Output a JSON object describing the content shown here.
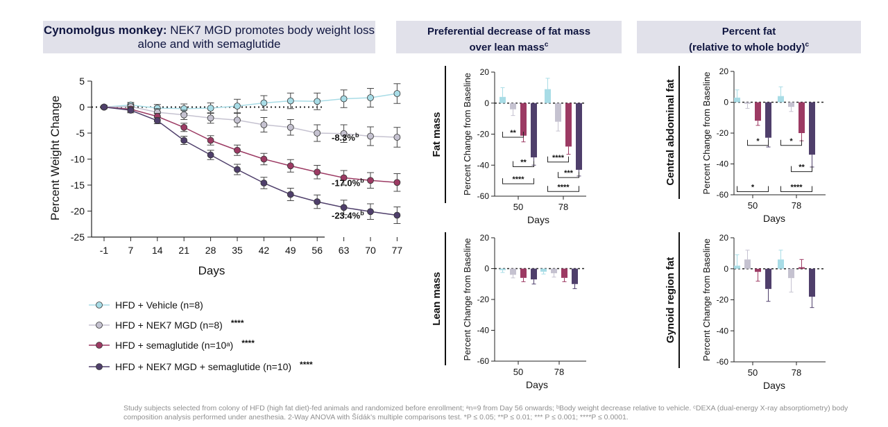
{
  "titles": {
    "main_bold": "Cynomolgus monkey:",
    "main_rest": " NEK7 MGD promotes body weight loss alone and with semaglutide",
    "mid_line1": "Preferential decrease of fat mass",
    "mid_line2": "over lean mass",
    "mid_sup": "c",
    "right_line1": "Percent fat",
    "right_line2": "(relative to whole body)",
    "right_sup": "c"
  },
  "colors": {
    "vehicle": "#a8dce6",
    "nek7": "#c5c2d0",
    "sema": "#9c3a63",
    "combo": "#4f3f6b"
  },
  "chart_data": [
    {
      "id": "weight",
      "type": "line",
      "ylabel": "Percent Weight Change",
      "xlabel": "Days",
      "x": [
        -1,
        7,
        14,
        21,
        28,
        35,
        42,
        49,
        56,
        63,
        70,
        77
      ],
      "ylim": [
        -25,
        5
      ],
      "yticks": [
        5,
        0,
        -5,
        -10,
        -15,
        -20,
        -25
      ],
      "series": [
        {
          "key": "vehicle",
          "name": "HFD + Vehicle (n=8)",
          "sig": "",
          "color": "#a8dce6",
          "values": [
            0,
            0.4,
            -0.2,
            -0.3,
            -0.2,
            0.2,
            0.8,
            1.2,
            1.1,
            1.6,
            1.8,
            2.6
          ],
          "err": [
            0.3,
            0.5,
            0.7,
            0.9,
            1.0,
            1.3,
            1.4,
            1.5,
            1.6,
            1.7,
            1.8,
            1.9
          ]
        },
        {
          "key": "nek7",
          "name": "HFD + NEK7 MGD (n=8)",
          "sig": "****",
          "color": "#c5c2d0",
          "values": [
            0,
            0.1,
            -1.0,
            -1.5,
            -2.1,
            -2.5,
            -3.4,
            -3.9,
            -5.0,
            -5.1,
            -5.6,
            -5.8
          ],
          "err": [
            0.3,
            0.5,
            0.7,
            0.9,
            1.0,
            1.3,
            1.4,
            1.5,
            1.6,
            1.7,
            1.8,
            1.9
          ]
        },
        {
          "key": "sema",
          "name": "HFD + semaglutide (n=10ᵃ)",
          "sig": "****",
          "color": "#9c3a63",
          "values": [
            0,
            -0.4,
            -1.8,
            -3.9,
            -6.4,
            -8.3,
            -10.0,
            -11.3,
            -12.5,
            -13.6,
            -14.1,
            -14.5
          ],
          "err": [
            0.3,
            0.5,
            0.6,
            0.8,
            0.9,
            1.0,
            1.1,
            1.2,
            1.3,
            1.4,
            1.5,
            1.7
          ]
        },
        {
          "key": "combo",
          "name": "HFD + NEK7 MGD  + semaglutide (n=10)",
          "sig": "****",
          "color": "#4f3f6b",
          "values": [
            0,
            -0.6,
            -2.6,
            -6.4,
            -9.2,
            -12.0,
            -14.6,
            -16.8,
            -18.2,
            -19.3,
            -20.1,
            -20.8
          ],
          "err": [
            0.3,
            0.5,
            0.6,
            0.8,
            0.9,
            1.0,
            1.1,
            1.2,
            1.3,
            1.4,
            1.5,
            1.6
          ]
        }
      ],
      "end_labels": [
        {
          "series": "nek7",
          "text": "-8.3%",
          "sup": "b"
        },
        {
          "series": "sema",
          "text": "-17.0%",
          "sup": "b"
        },
        {
          "series": "combo",
          "text": "-23.4%",
          "sup": "b"
        }
      ]
    },
    {
      "id": "fat_mass",
      "type": "bar",
      "row_label": "Fat mass",
      "ylabel": "Percent Change from Baseline",
      "xlabel": "Days",
      "categories": [
        "50",
        "78"
      ],
      "ylim": [
        -60,
        20
      ],
      "yticks": [
        20,
        0,
        -20,
        -40,
        -60
      ],
      "series": [
        {
          "key": "vehicle",
          "values": [
            4,
            9
          ],
          "err": [
            6,
            7
          ]
        },
        {
          "key": "nek7",
          "values": [
            -4,
            -12
          ],
          "err": [
            4,
            6
          ]
        },
        {
          "key": "sema",
          "values": [
            -21,
            -28
          ],
          "err": [
            4,
            5
          ]
        },
        {
          "key": "combo",
          "values": [
            -35,
            -43
          ],
          "err": [
            5,
            4
          ]
        }
      ],
      "sig_brackets": [
        {
          "cat": 0,
          "from": "vehicle",
          "to": "sema",
          "level": -22,
          "label": "**"
        },
        {
          "cat": 0,
          "from": "nek7",
          "to": "combo",
          "level": -41,
          "label": "**"
        },
        {
          "cat": 0,
          "from": "vehicle",
          "to": "combo",
          "level": -52,
          "label": "****"
        },
        {
          "cat": 1,
          "from": "vehicle",
          "to": "sema",
          "level": -38,
          "label": "****"
        },
        {
          "cat": 1,
          "from": "nek7",
          "to": "combo",
          "level": -48,
          "label": "***"
        },
        {
          "cat": 1,
          "from": "vehicle",
          "to": "combo",
          "level": -57,
          "label": "****"
        }
      ]
    },
    {
      "id": "lean_mass",
      "type": "bar",
      "row_label": "Lean mass",
      "ylabel": "Percent Change from Baseline",
      "xlabel": "Days",
      "categories": [
        "50",
        "78"
      ],
      "ylim": [
        -60,
        20
      ],
      "yticks": [
        20,
        0,
        -20,
        -40,
        -60
      ],
      "series": [
        {
          "key": "vehicle",
          "values": [
            -1,
            -2
          ],
          "err": [
            1.5,
            1.5
          ]
        },
        {
          "key": "nek7",
          "values": [
            -4,
            -3
          ],
          "err": [
            2,
            2.5
          ]
        },
        {
          "key": "sema",
          "values": [
            -6,
            -6
          ],
          "err": [
            2.5,
            2.5
          ]
        },
        {
          "key": "combo",
          "values": [
            -7,
            -10
          ],
          "err": [
            3,
            3
          ]
        }
      ],
      "sig_brackets": []
    },
    {
      "id": "central_fat",
      "type": "bar",
      "row_label": "Central  abdominal fat",
      "ylabel": "Percent Change from Baseline",
      "xlabel": "Days",
      "categories": [
        "50",
        "78"
      ],
      "ylim": [
        -60,
        20
      ],
      "yticks": [
        20,
        0,
        -20,
        -40,
        -60
      ],
      "series": [
        {
          "key": "vehicle",
          "values": [
            3,
            4
          ],
          "err": [
            5,
            6
          ]
        },
        {
          "key": "nek7",
          "values": [
            -1,
            -3
          ],
          "err": [
            3,
            3
          ]
        },
        {
          "key": "sema",
          "values": [
            -12,
            -20
          ],
          "err": [
            3,
            5
          ]
        },
        {
          "key": "combo",
          "values": [
            -23,
            -34
          ],
          "err": [
            6,
            8
          ]
        }
      ],
      "sig_brackets": [
        {
          "cat": 0,
          "from": "nek7",
          "to": "combo",
          "level": -28,
          "label": "*"
        },
        {
          "cat": 0,
          "from": "vehicle",
          "to": "combo",
          "level": -58,
          "label": "*"
        },
        {
          "cat": 1,
          "from": "vehicle",
          "to": "sema",
          "level": -28,
          "label": "*"
        },
        {
          "cat": 1,
          "from": "nek7",
          "to": "combo",
          "level": -45,
          "label": "**"
        },
        {
          "cat": 1,
          "from": "vehicle",
          "to": "combo",
          "level": -58,
          "label": "****"
        }
      ]
    },
    {
      "id": "gynoid_fat",
      "type": "bar",
      "row_label": "Gynoid region fat",
      "ylabel": "Percent Change from Baseline",
      "xlabel": "Days",
      "categories": [
        "50",
        "78"
      ],
      "ylim": [
        -60,
        20
      ],
      "yticks": [
        20,
        0,
        -20,
        -40,
        -60
      ],
      "series": [
        {
          "key": "vehicle",
          "values": [
            2,
            6
          ],
          "err": [
            7,
            6
          ]
        },
        {
          "key": "nek7",
          "values": [
            6,
            -6
          ],
          "err": [
            6,
            9
          ]
        },
        {
          "key": "sema",
          "values": [
            -2,
            1
          ],
          "err": [
            6,
            5
          ]
        },
        {
          "key": "combo",
          "values": [
            -13,
            -18
          ],
          "err": [
            8,
            7
          ]
        }
      ],
      "sig_brackets": []
    }
  ],
  "footnote": "Study subjects selected from colony of HFD (high fat diet)-fed animals and randomized before enrollment; ᵃn=9 from Day 56 onwards; ᵇBody weight decrease relative to vehicle. ᶜDEXA (dual-energy X-ray absorptiometry) body composition analysis performed under anesthesia. 2-Way ANOVA with Šídák’s multiple comparisons test.  *P ≤ 0.05; **P ≤ 0.01; *** P ≤ 0.001; ****P ≤ 0.0001."
}
